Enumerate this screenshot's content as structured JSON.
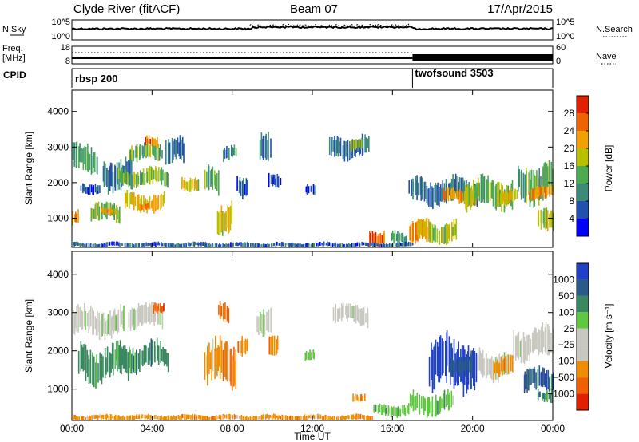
{
  "header": {
    "station": "Clyde River (fitACF)",
    "beam": "Beam 07",
    "date": "17/Apr/2015"
  },
  "strip_labels": {
    "nsky": "N.Sky",
    "nsearch": "N.Search",
    "freq_line1": "Freq.",
    "freq_line2": "[MHz]",
    "nave": "Nave",
    "cpid": "CPID",
    "noise_ticks_left": [
      "10^5",
      "10^0"
    ],
    "noise_ticks_right": [
      "10^5",
      "10^0"
    ],
    "freq_ticks_left": [
      "18",
      "8"
    ],
    "nave_ticks_right": [
      "60",
      "0"
    ]
  },
  "cpid_segments": [
    {
      "label": "rbsp 200",
      "start_hour": 0
    },
    {
      "label": "twofsound 3503",
      "start_hour": 17
    }
  ],
  "colors": {
    "power_scale": [
      "#0000ff",
      "#2050b0",
      "#3c8a78",
      "#4caa50",
      "#b8c000",
      "#f0a000",
      "#f06400",
      "#e02000"
    ],
    "velocity_scale": [
      "#2040c8",
      "#2a5a8a",
      "#3a8860",
      "#60c840",
      "#c8c8c0",
      "#c8c8c0",
      "#f08c00",
      "#f06000",
      "#e02000"
    ]
  },
  "chart_data": [
    {
      "type": "heatmap",
      "quantity": "Power",
      "xlabel": "Time UT",
      "ylabel": "Slant Range [km]",
      "colorbar_label": "Power [dB]",
      "x_ticks": [
        "00:00",
        "04:00",
        "08:00",
        "12:00",
        "16:00",
        "20:00",
        "00:00"
      ],
      "y_ticks": [
        1000,
        2000,
        3000,
        4000
      ],
      "colorbar_ticks": [
        4,
        8,
        12,
        16,
        20,
        24,
        28
      ],
      "xlim_hours": [
        0,
        24
      ],
      "ylim_km": [
        180,
        4600
      ],
      "clim": [
        0,
        32
      ],
      "regions": [
        {
          "t0": 0.0,
          "t1": 0.3,
          "r0": 800,
          "r1": 1200,
          "v": 25
        },
        {
          "t0": 0.0,
          "t1": 1.3,
          "r0": 2300,
          "r1": 3100,
          "v": 12
        },
        {
          "t0": 0.4,
          "t1": 1.4,
          "r0": 1700,
          "r1": 2000,
          "v": 6
        },
        {
          "t0": 0.9,
          "t1": 2.4,
          "r0": 900,
          "r1": 1400,
          "v": 14
        },
        {
          "t0": 1.4,
          "t1": 2.2,
          "r0": 1100,
          "r1": 1300,
          "v": 22
        },
        {
          "t0": 1.5,
          "t1": 3.0,
          "r0": 1800,
          "r1": 2700,
          "v": 8
        },
        {
          "t0": 2.6,
          "t1": 4.6,
          "r0": 1200,
          "r1": 1700,
          "v": 20
        },
        {
          "t0": 3.3,
          "t1": 3.9,
          "r0": 1250,
          "r1": 1450,
          "v": 26
        },
        {
          "t0": 2.2,
          "t1": 4.8,
          "r0": 1900,
          "r1": 2400,
          "v": 15
        },
        {
          "t0": 2.8,
          "t1": 4.5,
          "r0": 2600,
          "r1": 3100,
          "v": 14
        },
        {
          "t0": 3.6,
          "t1": 4.3,
          "r0": 3000,
          "r1": 3300,
          "v": 25
        },
        {
          "t0": 4.6,
          "t1": 5.6,
          "r0": 2500,
          "r1": 3200,
          "v": 8
        },
        {
          "t0": 5.4,
          "t1": 6.3,
          "r0": 1800,
          "r1": 2200,
          "v": 18
        },
        {
          "t0": 6.6,
          "t1": 7.3,
          "r0": 1700,
          "r1": 2400,
          "v": 13
        },
        {
          "t0": 7.2,
          "t1": 8.0,
          "r0": 600,
          "r1": 1500,
          "v": 19
        },
        {
          "t0": 7.5,
          "t1": 8.2,
          "r0": 2600,
          "r1": 3000,
          "v": 10
        },
        {
          "t0": 8.2,
          "t1": 8.8,
          "r0": 1600,
          "r1": 2200,
          "v": 6
        },
        {
          "t0": 9.3,
          "t1": 9.9,
          "r0": 2500,
          "r1": 3300,
          "v": 9
        },
        {
          "t0": 9.8,
          "t1": 10.4,
          "r0": 1900,
          "r1": 2300,
          "v": 5
        },
        {
          "t0": 11.6,
          "t1": 12.1,
          "r0": 1700,
          "r1": 2000,
          "v": 5
        },
        {
          "t0": 12.8,
          "t1": 14.8,
          "r0": 2700,
          "r1": 3300,
          "v": 8
        },
        {
          "t0": 13.9,
          "t1": 14.5,
          "r0": 2850,
          "r1": 3200,
          "v": 15
        },
        {
          "t0": 14.8,
          "t1": 15.6,
          "r0": 250,
          "r1": 700,
          "v": 27
        },
        {
          "t0": 15.9,
          "t1": 16.7,
          "r0": 250,
          "r1": 600,
          "v": 12
        },
        {
          "t0": 16.8,
          "t1": 17.8,
          "r0": 300,
          "r1": 950,
          "v": 25
        },
        {
          "t0": 17.2,
          "t1": 19.2,
          "r0": 300,
          "r1": 900,
          "v": 18
        },
        {
          "t0": 16.8,
          "t1": 20.2,
          "r0": 1400,
          "r1": 2100,
          "v": 8
        },
        {
          "t0": 18.5,
          "t1": 20.2,
          "r0": 1400,
          "r1": 1800,
          "v": 22
        },
        {
          "t0": 19.6,
          "t1": 22.0,
          "r0": 1300,
          "r1": 2100,
          "v": 14
        },
        {
          "t0": 21.2,
          "t1": 22.2,
          "r0": 1400,
          "r1": 1800,
          "v": 20
        },
        {
          "t0": 22.2,
          "t1": 24.0,
          "r0": 1500,
          "r1": 2500,
          "v": 13
        },
        {
          "t0": 22.8,
          "t1": 24.0,
          "r0": 1500,
          "r1": 1900,
          "v": 24
        },
        {
          "t0": 23.2,
          "t1": 24.0,
          "r0": 600,
          "r1": 1200,
          "v": 18
        },
        {
          "t0": 0.0,
          "t1": 17.0,
          "r0": 180,
          "r1": 320,
          "v": 7
        }
      ]
    },
    {
      "type": "heatmap",
      "quantity": "Velocity",
      "xlabel": "Time UT",
      "ylabel": "Slant Range [km]",
      "colorbar_label": "Velocity [m s⁻¹]",
      "x_ticks": [
        "00:00",
        "04:00",
        "08:00",
        "12:00",
        "16:00",
        "20:00",
        "00:00"
      ],
      "y_ticks": [
        1000,
        2000,
        3000,
        4000
      ],
      "colorbar_ticks": [
        "1000",
        "500",
        "100",
        "25",
        "−25",
        "−100",
        "−500",
        "−1000"
      ],
      "xlim_hours": [
        0,
        24
      ],
      "ylim_km": [
        180,
        4600
      ],
      "regions": [
        {
          "t0": 0.0,
          "t1": 2.6,
          "r0": 2400,
          "r1": 3100,
          "c": 4
        },
        {
          "t0": 0.3,
          "t1": 2.8,
          "r0": 1200,
          "r1": 2100,
          "c": 2
        },
        {
          "t0": 2.2,
          "t1": 4.8,
          "r0": 1500,
          "r1": 2200,
          "c": 2
        },
        {
          "t0": 2.8,
          "t1": 4.5,
          "r0": 2600,
          "r1": 3200,
          "c": 4
        },
        {
          "t0": 4.0,
          "t1": 4.6,
          "r0": 3000,
          "r1": 3300,
          "c": 7
        },
        {
          "t0": 6.6,
          "t1": 8.2,
          "r0": 1100,
          "r1": 2200,
          "c": 6
        },
        {
          "t0": 7.3,
          "t1": 7.8,
          "r0": 2800,
          "r1": 3300,
          "c": 7
        },
        {
          "t0": 8.2,
          "t1": 8.8,
          "r0": 1800,
          "r1": 2300,
          "c": 6
        },
        {
          "t0": 9.2,
          "t1": 9.9,
          "r0": 2500,
          "r1": 3200,
          "c": 4
        },
        {
          "t0": 9.8,
          "t1": 10.3,
          "r0": 1800,
          "r1": 2300,
          "c": 6
        },
        {
          "t0": 11.6,
          "t1": 12.1,
          "r0": 1700,
          "r1": 2000,
          "c": 3
        },
        {
          "t0": 13.0,
          "t1": 14.8,
          "r0": 2700,
          "r1": 3200,
          "c": 4
        },
        {
          "t0": 14.0,
          "t1": 14.6,
          "r0": 700,
          "r1": 900,
          "c": 6
        },
        {
          "t0": 15.0,
          "t1": 16.8,
          "r0": 300,
          "r1": 600,
          "c": 3
        },
        {
          "t0": 16.8,
          "t1": 19.0,
          "r0": 350,
          "r1": 900,
          "c": 3
        },
        {
          "t0": 17.8,
          "t1": 20.2,
          "r0": 1000,
          "r1": 2300,
          "c": 0
        },
        {
          "t0": 18.8,
          "t1": 20.0,
          "r0": 1400,
          "r1": 1900,
          "c": 1
        },
        {
          "t0": 20.2,
          "t1": 21.6,
          "r0": 1300,
          "r1": 2000,
          "c": 4
        },
        {
          "t0": 21.0,
          "t1": 22.0,
          "r0": 1300,
          "r1": 1800,
          "c": 6
        },
        {
          "t0": 22.0,
          "t1": 24.0,
          "r0": 1800,
          "r1": 2600,
          "c": 4
        },
        {
          "t0": 22.5,
          "t1": 24.0,
          "r0": 900,
          "r1": 1500,
          "c": 1
        },
        {
          "t0": 23.2,
          "t1": 24.0,
          "r0": 700,
          "r1": 1000,
          "c": 2
        },
        {
          "t0": 0.0,
          "t1": 15.0,
          "r0": 180,
          "r1": 330,
          "c": 6
        }
      ]
    }
  ]
}
